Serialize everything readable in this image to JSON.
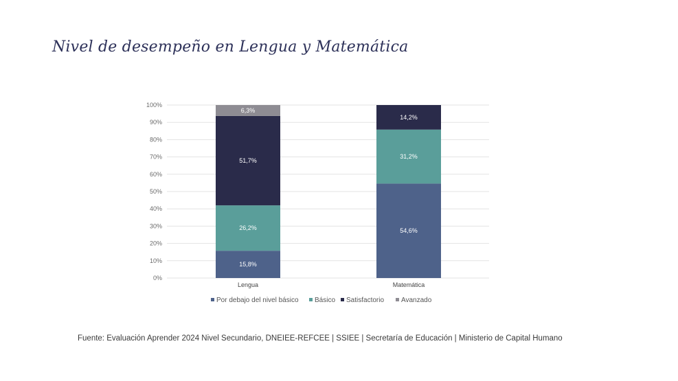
{
  "title": "Nivel de desempeño en Lengua y Matemática",
  "source": "Fuente: Evaluación Aprender 2024 Nivel Secundario, DNEIEE-REFCEE | SSIEE | Secretaría de Educación | Ministerio de Capital Humano",
  "chart_data": {
    "type": "bar",
    "stacked": true,
    "categories": [
      "Lengua",
      "Matemática"
    ],
    "series": [
      {
        "name": "Por debajo del nivel básico",
        "color": "#4e628a",
        "values": [
          15.8,
          54.6
        ],
        "labels": [
          "15,8%",
          "54,6%"
        ]
      },
      {
        "name": "Básico",
        "color": "#5a9e9a",
        "values": [
          26.2,
          31.2
        ],
        "labels": [
          "26,2%",
          "31,2%"
        ]
      },
      {
        "name": "Satisfactorio",
        "color": "#2a2b4a",
        "values": [
          51.7,
          14.2
        ],
        "labels": [
          "51,7%",
          "14,2%"
        ]
      },
      {
        "name": "Avanzado",
        "color": "#8e8c93",
        "values": [
          6.3,
          0
        ],
        "labels": [
          "6,3%",
          ""
        ]
      }
    ],
    "ylim": [
      0,
      100
    ],
    "yticks": [
      "0%",
      "10%",
      "20%",
      "30%",
      "40%",
      "50%",
      "60%",
      "70%",
      "80%",
      "90%",
      "100%"
    ],
    "grid": true,
    "legend_position": "bottom"
  }
}
